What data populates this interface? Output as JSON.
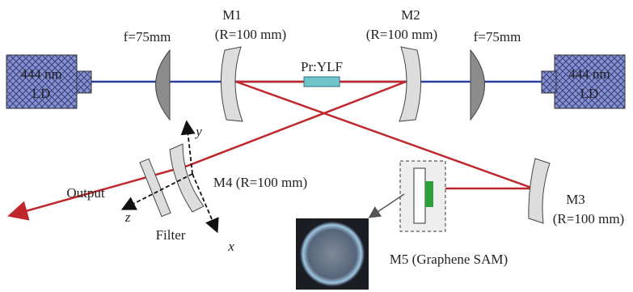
{
  "left_source": {
    "line1": "444 nm",
    "line2": "LD"
  },
  "right_source": {
    "line1": "444 nm",
    "line2": "LD"
  },
  "left_lens": {
    "label": "f=75mm"
  },
  "right_lens": {
    "label": "f=75mm"
  },
  "m1": {
    "name": "M1",
    "spec": "(R=100 mm)"
  },
  "m2": {
    "name": "M2",
    "spec": "(R=100 mm)"
  },
  "crystal": {
    "label": "Pr:YLF"
  },
  "m3": {
    "name": "M3",
    "spec": "(R=100 mm)"
  },
  "m4": {
    "label": "M4 (R=100 mm)"
  },
  "m5": {
    "label": "M5 (Graphene SAM)"
  },
  "filter": {
    "label": "Filter"
  },
  "output": {
    "label": "Output"
  },
  "axes": {
    "x": "x",
    "y": "y",
    "z": "z"
  }
}
